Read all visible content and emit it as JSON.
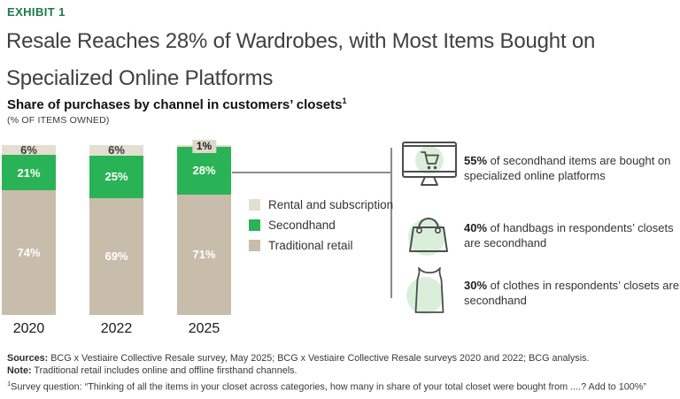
{
  "exhibit_label": "EXHIBIT 1",
  "title_lines": [
    "Resale Reaches 28% of Wardrobes, with Most Items Bought on",
    "Specialized Online Platforms"
  ],
  "subtitle": "Share of purchases by channel in customers’ closets",
  "subtitle_superscript": "1",
  "unit_label": "(% OF ITEMS OWNED)",
  "colors": {
    "exhibit_green": "#1c7a4b",
    "secondhand_green": "#29b356",
    "traditional_taupe": "#c8bcab",
    "rental_beige": "#e4ded1",
    "badge_beige": "#ded8c9",
    "icon_circle_green": "#d9efda",
    "connector_gray": "#8c8c8c"
  },
  "chart_data": {
    "type": "bar",
    "stacked": true,
    "categories": [
      "2020",
      "2022",
      "2025"
    ],
    "series": [
      {
        "name": "Rental and subscription",
        "color": "#e4ded1",
        "label_color": "#3c3c3c",
        "values": [
          6,
          6,
          1
        ]
      },
      {
        "name": "Secondhand",
        "color": "#29b356",
        "label_color": "#ffffff",
        "values": [
          21,
          25,
          28
        ]
      },
      {
        "name": "Traditional retail",
        "color": "#c8bcab",
        "label_color": "#ffffff",
        "values": [
          74,
          69,
          71
        ]
      }
    ],
    "value_suffix": "%",
    "ylim": [
      0,
      100
    ],
    "grid": false,
    "legend_position": "right-of-bars",
    "title": "Share of purchases by channel in customers’ closets",
    "xlabel": "",
    "ylabel": "(% OF ITEMS OWNED)"
  },
  "callouts": [
    {
      "icon": "monitor-cart-icon",
      "lead": "55%",
      "rest": " of secondhand items are bought on specialized online platforms"
    },
    {
      "icon": "handbag-icon",
      "lead": "40%",
      "rest": " of handbags in respondents’ closets are secondhand"
    },
    {
      "icon": "tank-top-icon",
      "lead": "30%",
      "rest": " of clothes in respondents’ closets are secondhand"
    }
  ],
  "footer": {
    "sources_label": "Sources:",
    "sources_text": " BCG x Vestiaire Collective Resale survey, May 2025; BCG x Vestiaire Collective Resale surveys 2020 and 2022; BCG analysis.",
    "note_label": "Note:",
    "note_text": " Traditional retail includes online and offline firsthand channels.",
    "footnote_superscript": "1",
    "footnote_text": "Survey question: “Thinking of all the items in your closet across categories, how many in share of your total closet were bought from ....? Add to 100%”"
  }
}
